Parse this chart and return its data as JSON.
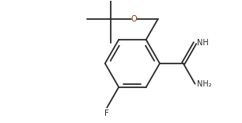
{
  "bg_color": "#ffffff",
  "line_color": "#2b2b2b",
  "lw": 1.3,
  "fs": 7.0,
  "fig_w": 3.06,
  "fig_h": 1.55,
  "dpi": 100,
  "NH_color": "#2b2b2b",
  "F_color": "#2b2b2b",
  "O_color": "#993300",
  "xlim": [
    -3.2,
    2.6
  ],
  "ylim": [
    -1.55,
    1.65
  ]
}
